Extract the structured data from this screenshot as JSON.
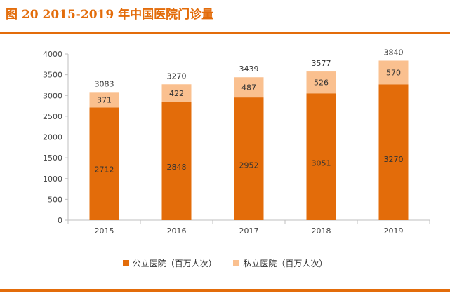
{
  "chart_data": {
    "type": "bar",
    "stacked": true,
    "title": "图 20 2015-2019 年中国医院门诊量",
    "categories": [
      "2015",
      "2016",
      "2017",
      "2018",
      "2019"
    ],
    "series": [
      {
        "name": "公立医院（百万人次）",
        "values": [
          2712,
          2848,
          2952,
          3051,
          3270
        ],
        "color": "#e36c0a"
      },
      {
        "name": "私立医院（百万人次）",
        "values": [
          371,
          422,
          487,
          526,
          570
        ],
        "color": "#fac08f"
      }
    ],
    "totals": [
      3083,
      3270,
      3439,
      3577,
      3840
    ],
    "yticks": [
      0,
      500,
      1000,
      1500,
      2000,
      2500,
      3000,
      3500,
      4000
    ],
    "ylim": [
      0,
      4000
    ],
    "xlabel": "",
    "ylabel": "",
    "legend": "bottom"
  }
}
